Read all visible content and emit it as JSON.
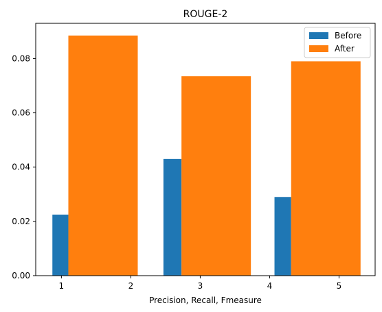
{
  "chart_data": {
    "type": "bar",
    "title": "ROUGE-2",
    "xlabel": "Precision, Recall, Fmeasure",
    "ylabel": "",
    "xlim": [
      0.63,
      5.52
    ],
    "ylim": [
      0,
      0.093
    ],
    "xticks": [
      1,
      2,
      3,
      4,
      5
    ],
    "yticks": [
      0.0,
      0.02,
      0.04,
      0.06,
      0.08
    ],
    "ytick_labels": [
      "0.00",
      "0.02",
      "0.04",
      "0.06",
      "0.08"
    ],
    "xtick_labels": [
      "1",
      "2",
      "3",
      "4",
      "5"
    ],
    "legend_position": "top-right",
    "grid": false,
    "series": [
      {
        "name": "Before",
        "color": "#1f77b4",
        "bars": [
          {
            "x_start": 0.87,
            "x_end": 1.1,
            "value": 0.0225
          },
          {
            "x_start": 2.47,
            "x_end": 2.73,
            "value": 0.043
          },
          {
            "x_start": 4.07,
            "x_end": 4.31,
            "value": 0.029
          }
        ]
      },
      {
        "name": "After",
        "color": "#ff7f0e",
        "bars": [
          {
            "x_start": 1.1,
            "x_end": 2.1,
            "value": 0.0885
          },
          {
            "x_start": 2.73,
            "x_end": 3.73,
            "value": 0.0735
          },
          {
            "x_start": 4.31,
            "x_end": 5.31,
            "value": 0.079
          }
        ]
      }
    ]
  }
}
